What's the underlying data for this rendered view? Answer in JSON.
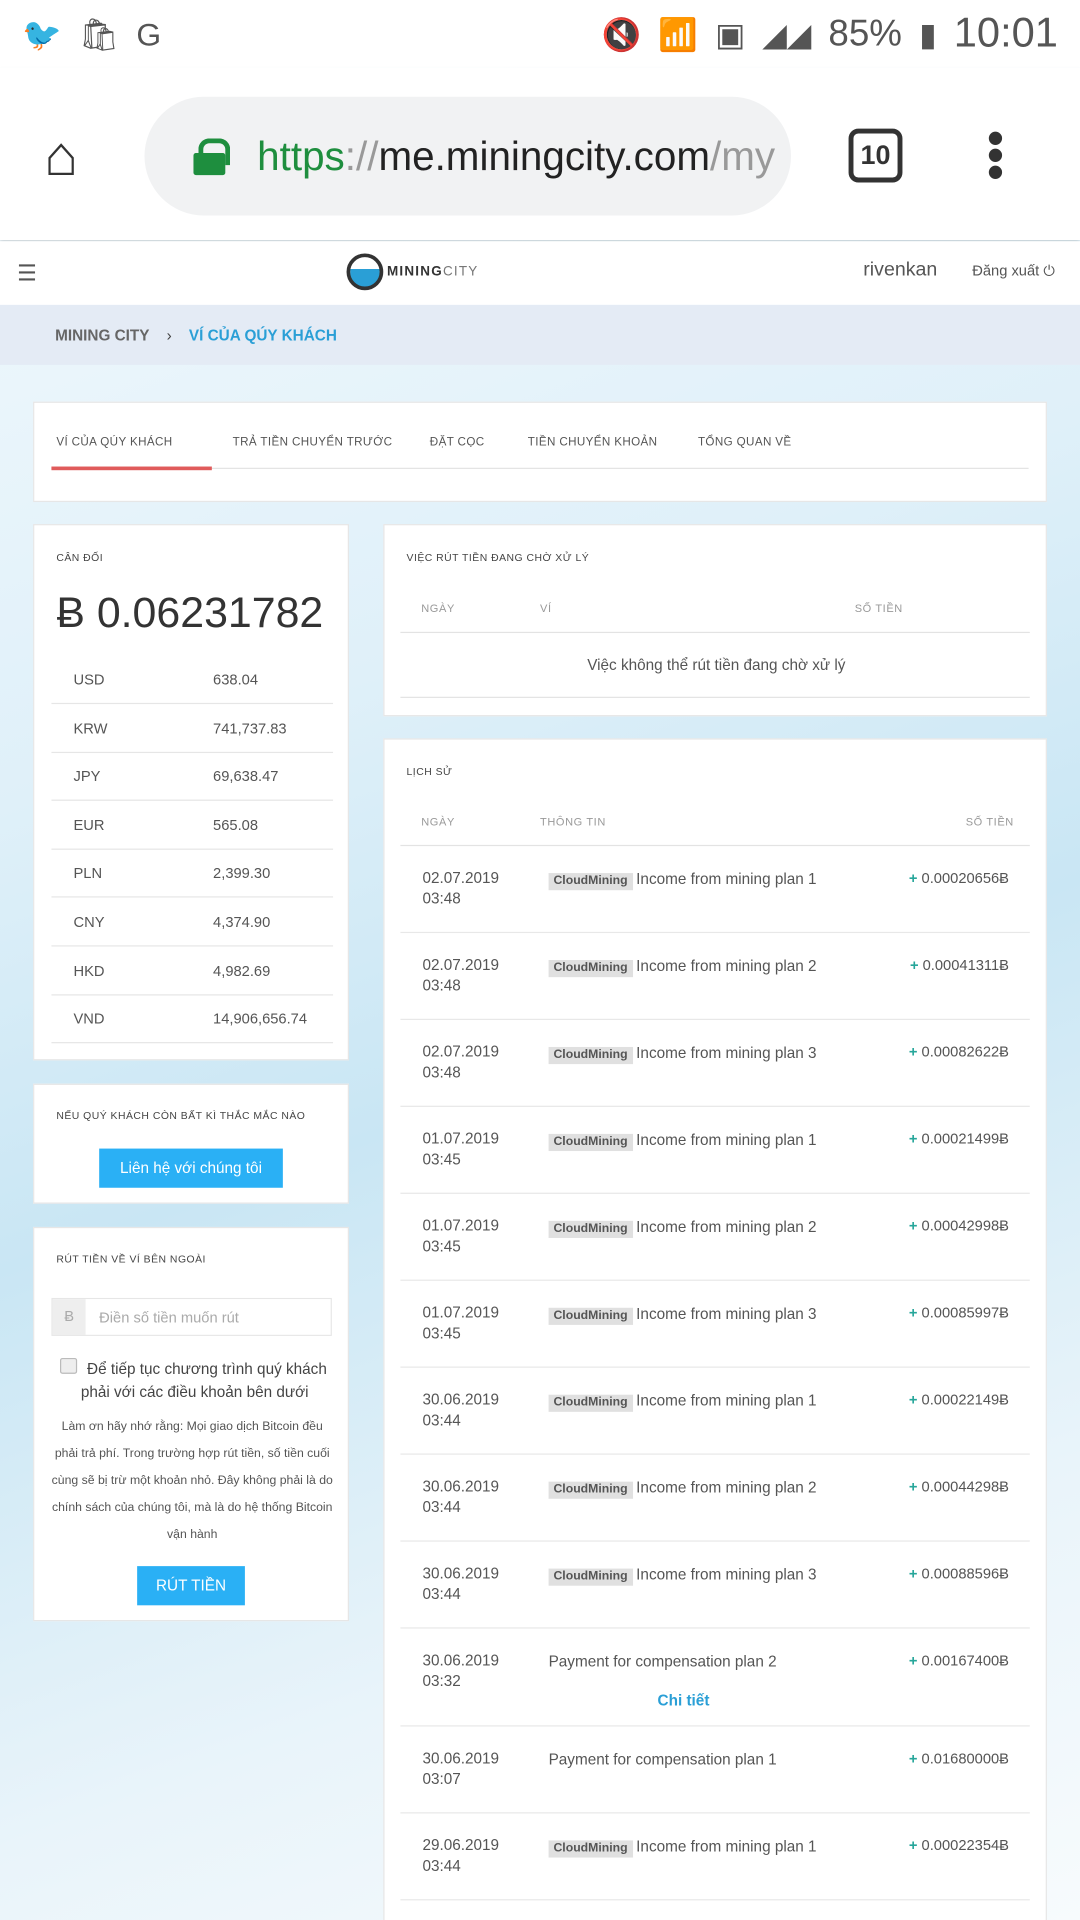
{
  "status_bar": {
    "icons_left": [
      "twitter-icon",
      "shopee-icon",
      "google-translate-icon"
    ],
    "icons_right": [
      "mute-icon",
      "wifi-icon",
      "sim-icon",
      "signal-icon",
      "signal-icon"
    ],
    "battery": "85%",
    "time": "10:01"
  },
  "browser": {
    "url_scheme": "https",
    "url_sep": "://",
    "url_host": "me.miningcity.com",
    "url_rest": "/my",
    "tab_count": "10"
  },
  "header": {
    "logo_bold": "MINING",
    "logo_light": "CITY",
    "username": "rivenkan",
    "logout": "Đăng xuất"
  },
  "breadcrumb": {
    "root": "MINING CITY",
    "sep": "›",
    "current": "VÍ CỦA QÚY KHÁCH"
  },
  "tabs": [
    "VÍ CỦA QÚY KHÁCH",
    "TRẢ TIỀN CHUYỂN TRƯỚC",
    "ĐẶT CỌC",
    "TIỀN CHUYỂN KHOẢN",
    "TỔNG QUAN VỀ"
  ],
  "accent": "#e05b5b",
  "button_color": "#2ab0f5",
  "balance": {
    "title": "CÂN ĐỐI",
    "amount": "Ƀ 0.06231782",
    "rows": [
      [
        "USD",
        "638.04"
      ],
      [
        "KRW",
        "741,737.83"
      ],
      [
        "JPY",
        "69,638.47"
      ],
      [
        "EUR",
        "565.08"
      ],
      [
        "PLN",
        "2,399.30"
      ],
      [
        "CNY",
        "4,374.90"
      ],
      [
        "HKD",
        "4,982.69"
      ],
      [
        "VND",
        "14,906,656.74"
      ]
    ]
  },
  "contact": {
    "title": "NẾU QUÝ KHÁCH CÒN BẤT KÌ THẮC MẮC NÀO",
    "button": "Liên hệ với chúng tôi"
  },
  "withdraw": {
    "title": "RÚT TIỀN VỀ VÍ BÊN NGOÀI",
    "prefix": "Ƀ",
    "placeholder": "Điền số tiền muốn rút",
    "terms": "Để tiếp tục chương trình quý khách phải với các điều khoản bên dưới",
    "note": "Làm ơn hãy nhớ rằng: Mọi giao dịch Bitcoin đều phải trả phí. Trong trường hợp rút tiền, số tiền cuối cùng sẽ bị trừ một khoản nhỏ. Đây không phải là do chính sách của chúng tôi, mà là do hệ thống Bitcoin vận hành",
    "button": "RÚT TIỀN"
  },
  "pending": {
    "title": "VIỆC RÚT TIỀN ĐANG CHỜ XỬ LÝ",
    "columns": [
      "NGÀY",
      "VÍ",
      "SỐ TIỀN"
    ],
    "empty": "Việc không thể rút tiền đang chờ xử lý"
  },
  "history": {
    "title": "LỊCH SỬ",
    "columns": [
      "NGÀY",
      "THÔNG TIN",
      "SỐ TIỀN"
    ],
    "detail_link": "Chi tiết",
    "rows": [
      {
        "date": "02.07.2019",
        "time": "03:48",
        "tag": "CloudMining",
        "info": "Income from mining plan 1",
        "sign": "+",
        "amount": "0.00020656Ƀ"
      },
      {
        "date": "02.07.2019",
        "time": "03:48",
        "tag": "CloudMining",
        "info": "Income from mining plan 2",
        "sign": "+",
        "amount": "0.00041311Ƀ"
      },
      {
        "date": "02.07.2019",
        "time": "03:48",
        "tag": "CloudMining",
        "info": "Income from mining plan 3",
        "sign": "+",
        "amount": "0.00082622Ƀ"
      },
      {
        "date": "01.07.2019",
        "time": "03:45",
        "tag": "CloudMining",
        "info": "Income from mining plan 1",
        "sign": "+",
        "amount": "0.00021499Ƀ"
      },
      {
        "date": "01.07.2019",
        "time": "03:45",
        "tag": "CloudMining",
        "info": "Income from mining plan 2",
        "sign": "+",
        "amount": "0.00042998Ƀ"
      },
      {
        "date": "01.07.2019",
        "time": "03:45",
        "tag": "CloudMining",
        "info": "Income from mining plan 3",
        "sign": "+",
        "amount": "0.00085997Ƀ"
      },
      {
        "date": "30.06.2019",
        "time": "03:44",
        "tag": "CloudMining",
        "info": "Income from mining plan 1",
        "sign": "+",
        "amount": "0.00022149Ƀ"
      },
      {
        "date": "30.06.2019",
        "time": "03:44",
        "tag": "CloudMining",
        "info": "Income from mining plan 2",
        "sign": "+",
        "amount": "0.00044298Ƀ"
      },
      {
        "date": "30.06.2019",
        "time": "03:44",
        "tag": "CloudMining",
        "info": "Income from mining plan 3",
        "sign": "+",
        "amount": "0.00088596Ƀ"
      },
      {
        "date": "30.06.2019",
        "time": "03:32",
        "tag": "",
        "info": "Payment for compensation plan 2",
        "sign": "+",
        "amount": "0.00167400Ƀ",
        "detail": true
      },
      {
        "date": "30.06.2019",
        "time": "03:07",
        "tag": "",
        "info": "Payment for compensation plan 1",
        "sign": "+",
        "amount": "0.01680000Ƀ"
      },
      {
        "date": "29.06.2019",
        "time": "03:44",
        "tag": "CloudMining",
        "info": "Income from mining plan 1",
        "sign": "+",
        "amount": "0.00022354Ƀ"
      }
    ]
  }
}
